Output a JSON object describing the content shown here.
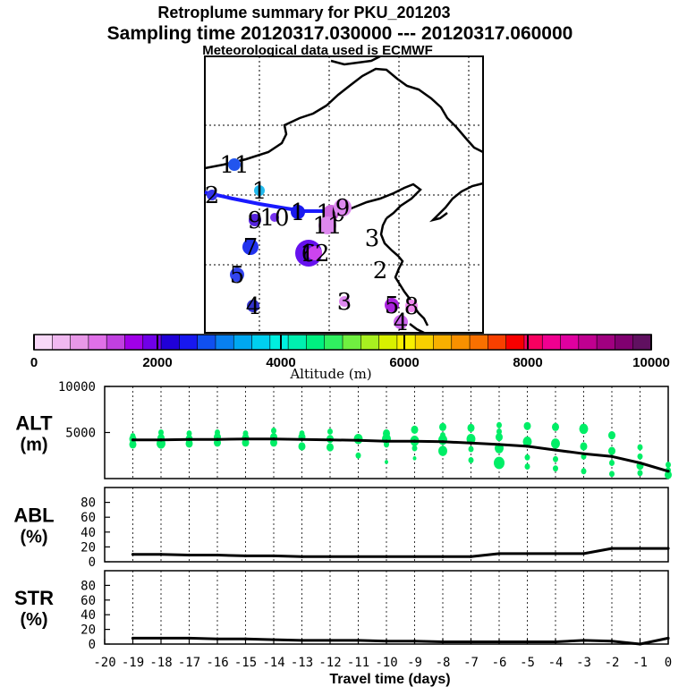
{
  "titles": {
    "line1": "Retroplume summary for PKU_201203",
    "line2": "Sampling time   20120317.030000 --- 20120317.060000",
    "line3": "Meteorological data used is ECMWF"
  },
  "colorbar": {
    "ticks": [
      "0",
      "2000",
      "4000",
      "6000",
      "8000",
      "10000"
    ],
    "label": "Altitude (m)",
    "colors": [
      "#f8d8f8",
      "#f0b8f0",
      "#e898e8",
      "#e070e8",
      "#c040e0",
      "#a000e8",
      "#7000e8",
      "#2000d8",
      "#1818f0",
      "#1050f0",
      "#0880f0",
      "#00a8f0",
      "#00d0f0",
      "#00f0e0",
      "#00f0b0",
      "#00f080",
      "#30f060",
      "#70f040",
      "#a8f020",
      "#d8f000",
      "#f8f000",
      "#f8d000",
      "#f8b000",
      "#f89000",
      "#f87000",
      "#f84000",
      "#f80000",
      "#f80060",
      "#f00090",
      "#e000a0",
      "#c00090",
      "#a00080",
      "#800070",
      "#601060"
    ]
  },
  "map": {
    "path_color": "#1a1aff",
    "clusters": [
      {
        "label": "11",
        "c": "#2255ee",
        "a": 3500
      },
      {
        "label": "2",
        "c": "#3333ee",
        "a": 3200
      },
      {
        "label": "1",
        "c": "#22bbee",
        "a": 3700
      },
      {
        "label": "9",
        "c": "#5522dd",
        "a": 3000
      },
      {
        "label": "10",
        "c": "#7733ee",
        "a": 2700
      },
      {
        "label": "1",
        "c": "#1a1aee",
        "a": 2300
      },
      {
        "label": "10",
        "c": "#cc66dd",
        "a": 1300
      },
      {
        "label": "9",
        "c": "#dd88ee",
        "a": 1100
      },
      {
        "label": "11",
        "c": "#dd88ee",
        "a": 1000
      },
      {
        "label": "7",
        "c": "#2233ee",
        "a": 2500
      },
      {
        "label": "6",
        "c": "#6611ee",
        "a": 1800
      },
      {
        "label": "12",
        "c": "#cc44ee",
        "a": 1300
      },
      {
        "label": "3",
        "c": "#ffffff",
        "a": 0
      },
      {
        "label": "5",
        "c": "#3344ee",
        "a": 2500
      },
      {
        "label": "2",
        "c": "#ffffff",
        "a": 0
      },
      {
        "label": "4",
        "c": "#3333cc",
        "a": 2400
      },
      {
        "label": "3",
        "c": "#dd88ee",
        "a": 1000
      },
      {
        "label": "5",
        "c": "#aa22dd",
        "a": 1300
      },
      {
        "label": "8",
        "c": "#ee88ee",
        "a": 900
      },
      {
        "label": "4",
        "c": "#cc66ee",
        "a": 1200
      }
    ]
  },
  "chart_data": [
    {
      "type": "line",
      "name": "ALT",
      "ylabel": "ALT\n(m)",
      "ylabel_l1": "ALT",
      "ylabel_l2": "(m)",
      "ylim": [
        0,
        10000
      ],
      "yticks": [
        "10000",
        "5000"
      ],
      "ytick_values": [
        10000,
        5000
      ],
      "x": [
        -19,
        -18,
        -17,
        -16,
        -15,
        -14,
        -13,
        -12,
        -11,
        -10,
        -9,
        -8,
        -7,
        -6,
        -5,
        -4,
        -3,
        -2,
        -1,
        0
      ],
      "mean_altitude_m": [
        4200,
        4200,
        4250,
        4250,
        4300,
        4300,
        4250,
        4200,
        4150,
        4050,
        4050,
        4000,
        3850,
        3700,
        3500,
        3100,
        2700,
        2400,
        1700,
        800
      ],
      "scatter_color": "#00ee66",
      "scatter": [
        [
          -19,
          4300
        ],
        [
          -19,
          3700
        ],
        [
          -19,
          4600
        ],
        [
          -18,
          4400
        ],
        [
          -18,
          3800
        ],
        [
          -18,
          5000
        ],
        [
          -17,
          4300
        ],
        [
          -17,
          3800
        ],
        [
          -17,
          4900
        ],
        [
          -16,
          4500
        ],
        [
          -16,
          3900
        ],
        [
          -16,
          5000
        ],
        [
          -15,
          4400
        ],
        [
          -15,
          3900
        ],
        [
          -15,
          4900
        ],
        [
          -14,
          4500
        ],
        [
          -14,
          3900
        ],
        [
          -14,
          5200
        ],
        [
          -13,
          4500
        ],
        [
          -13,
          3500
        ],
        [
          -13,
          4900
        ],
        [
          -12,
          4300
        ],
        [
          -12,
          3400
        ],
        [
          -12,
          5100
        ],
        [
          -11,
          4300
        ],
        [
          -11,
          2500
        ],
        [
          -11,
          4500
        ],
        [
          -10,
          4300
        ],
        [
          -10,
          1800
        ],
        [
          -10,
          4900
        ],
        [
          -10,
          3700
        ],
        [
          -9,
          4100
        ],
        [
          -9,
          2200
        ],
        [
          -9,
          5300
        ],
        [
          -9,
          3300
        ],
        [
          -8,
          4200
        ],
        [
          -8,
          3000
        ],
        [
          -8,
          5600
        ],
        [
          -8,
          4700
        ],
        [
          -7,
          4300
        ],
        [
          -7,
          2000
        ],
        [
          -7,
          5500
        ],
        [
          -7,
          3200
        ],
        [
          -6,
          5800
        ],
        [
          -6,
          4500
        ],
        [
          -6,
          3300
        ],
        [
          -6,
          1700
        ],
        [
          -6,
          5100
        ],
        [
          -5,
          5700
        ],
        [
          -5,
          4000
        ],
        [
          -5,
          2300
        ],
        [
          -5,
          1300
        ],
        [
          -4,
          5600
        ],
        [
          -4,
          3800
        ],
        [
          -4,
          2100
        ],
        [
          -4,
          1100
        ],
        [
          -3,
          5400
        ],
        [
          -3,
          3500
        ],
        [
          -3,
          2400
        ],
        [
          -3,
          800
        ],
        [
          -2,
          4700
        ],
        [
          -2,
          3000
        ],
        [
          -2,
          1700
        ],
        [
          -2,
          500
        ],
        [
          -1,
          3400
        ],
        [
          -1,
          2400
        ],
        [
          -1,
          1400
        ],
        [
          -1,
          600
        ],
        [
          0,
          1500
        ],
        [
          0,
          900
        ],
        [
          0,
          400
        ]
      ],
      "scatter_sizes": [
        4,
        4,
        3,
        4,
        5,
        3,
        4,
        4,
        3,
        4,
        4,
        3,
        4,
        4,
        3,
        4,
        4,
        3,
        4,
        4,
        3,
        4,
        4,
        3,
        5,
        3,
        3,
        5,
        2,
        4,
        3,
        5,
        2,
        4,
        3,
        5,
        5,
        4,
        3,
        5,
        3,
        4,
        3,
        3,
        4,
        5,
        6,
        3,
        4,
        5,
        3,
        3,
        4,
        5,
        3,
        3,
        5,
        4,
        3,
        3,
        4,
        4,
        3,
        3,
        3,
        3,
        4,
        3,
        3,
        3,
        4
      ],
      "xlim": [
        -20,
        0
      ]
    },
    {
      "type": "line",
      "name": "ABL",
      "ylabel": "ABL\n(%)",
      "ylabel_l1": "ABL",
      "ylabel_l2": "(%)",
      "ylim": [
        0,
        100
      ],
      "yticks": [
        "80",
        "60",
        "40",
        "20",
        "0"
      ],
      "ytick_values": [
        80,
        60,
        40,
        20,
        0
      ],
      "x": [
        -19,
        -18,
        -17,
        -16,
        -15,
        -14,
        -13,
        -12,
        -11,
        -10,
        -9,
        -8,
        -7,
        -6,
        -5,
        -4,
        -3,
        -2,
        -1,
        0
      ],
      "values": [
        10,
        10,
        9,
        9,
        8,
        8,
        7,
        7,
        7,
        7,
        7,
        7,
        7,
        11,
        11,
        11,
        11,
        18,
        18,
        18
      ],
      "xlim": [
        -20,
        0
      ]
    },
    {
      "type": "line",
      "name": "STR",
      "ylabel": "STR\n(%)",
      "ylabel_l1": "STR",
      "ylabel_l2": "(%)",
      "ylim": [
        0,
        100
      ],
      "yticks": [
        "80",
        "60",
        "40",
        "20",
        "0"
      ],
      "ytick_values": [
        80,
        60,
        40,
        20,
        0
      ],
      "x": [
        -19,
        -18,
        -17,
        -16,
        -15,
        -14,
        -13,
        -12,
        -11,
        -10,
        -9,
        -8,
        -7,
        -6,
        -5,
        -4,
        -3,
        -2,
        -1,
        0
      ],
      "values": [
        8,
        8,
        8,
        7,
        7,
        6,
        5,
        5,
        5,
        4,
        4,
        3,
        3,
        3,
        3,
        3,
        5,
        4,
        0,
        8
      ],
      "xlim": [
        -20,
        0
      ]
    }
  ],
  "xaxis": {
    "ticks": [
      "-20",
      "-19",
      "-18",
      "-17",
      "-16",
      "-15",
      "-14",
      "-13",
      "-12",
      "-11",
      "-10",
      "-9",
      "-8",
      "-7",
      "-6",
      "-5",
      "-4",
      "-3",
      "-2",
      "-1",
      "0"
    ],
    "label": "Travel time (days)"
  }
}
